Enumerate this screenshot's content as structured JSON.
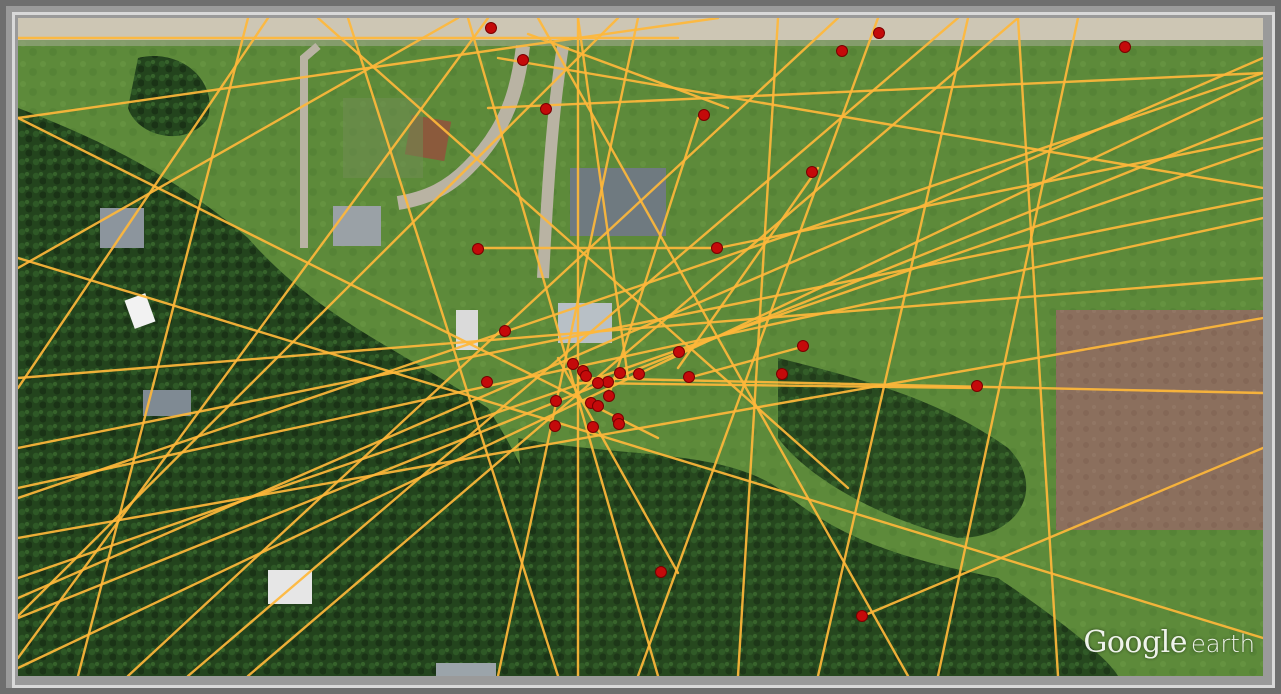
{
  "watermark": {
    "brand": "Google",
    "product": "earth"
  },
  "colors": {
    "track_line": "#ffb83a",
    "marker_fill": "#c40a0a",
    "marker_stroke": "#7a0000",
    "road": "#cfc8b6",
    "grass": "#5f8a3c",
    "forest": "#21401c",
    "field": "#8a6e5c"
  },
  "layers": {
    "base": "satellite-imagery",
    "overlays": [
      "sight-lines",
      "point-markers"
    ]
  },
  "icons": {
    "marker": "red-dot-marker-icon"
  }
}
